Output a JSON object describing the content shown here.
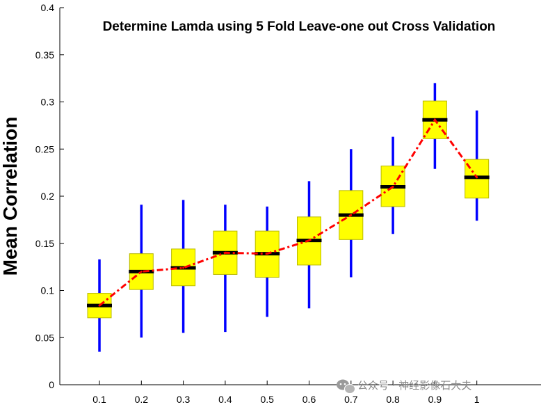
{
  "chart_data": {
    "type": "box",
    "title": "Determine Lamda using 5 Fold Leave-one out Cross Validation",
    "xlabel": "",
    "ylabel": "Mean Correlation",
    "categories": [
      "0.1",
      "0.2",
      "0.3",
      "0.4",
      "0.5",
      "0.6",
      "0.7",
      "0.8",
      "0.9",
      "1"
    ],
    "ylim": [
      0,
      0.4
    ],
    "yticks": [
      "0",
      "0.05",
      "0.1",
      "0.15",
      "0.2",
      "0.25",
      "0.3",
      "0.35",
      "0.4"
    ],
    "boxes": [
      {
        "whisker_low": 0.035,
        "q1": 0.071,
        "median": 0.084,
        "q3": 0.097,
        "whisker_high": 0.133
      },
      {
        "whisker_low": 0.05,
        "q1": 0.101,
        "median": 0.12,
        "q3": 0.139,
        "whisker_high": 0.191
      },
      {
        "whisker_low": 0.055,
        "q1": 0.105,
        "median": 0.124,
        "q3": 0.144,
        "whisker_high": 0.196
      },
      {
        "whisker_low": 0.056,
        "q1": 0.117,
        "median": 0.14,
        "q3": 0.163,
        "whisker_high": 0.191
      },
      {
        "whisker_low": 0.072,
        "q1": 0.114,
        "median": 0.139,
        "q3": 0.163,
        "whisker_high": 0.189
      },
      {
        "whisker_low": 0.081,
        "q1": 0.127,
        "median": 0.153,
        "q3": 0.178,
        "whisker_high": 0.216
      },
      {
        "whisker_low": 0.114,
        "q1": 0.154,
        "median": 0.18,
        "q3": 0.206,
        "whisker_high": 0.25
      },
      {
        "whisker_low": 0.16,
        "q1": 0.189,
        "median": 0.21,
        "q3": 0.232,
        "whisker_high": 0.263
      },
      {
        "whisker_low": 0.229,
        "q1": 0.261,
        "median": 0.281,
        "q3": 0.301,
        "whisker_high": 0.32
      },
      {
        "whisker_low": 0.174,
        "q1": 0.198,
        "median": 0.22,
        "q3": 0.239,
        "whisker_high": 0.291
      }
    ],
    "mean_line": [
      0.084,
      0.12,
      0.124,
      0.14,
      0.139,
      0.153,
      0.18,
      0.21,
      0.281,
      0.22
    ],
    "colors": {
      "box_fill": "#ffff00",
      "box_edge": "#b8b800",
      "whisker": "#0000ff",
      "median": "#000000",
      "mean_line": "#ff0000",
      "axis": "#000000"
    },
    "grid": false,
    "legend": "none"
  },
  "watermark": {
    "text": "公众号 · 神经影像石大夫",
    "icon": "wechat-icon"
  }
}
